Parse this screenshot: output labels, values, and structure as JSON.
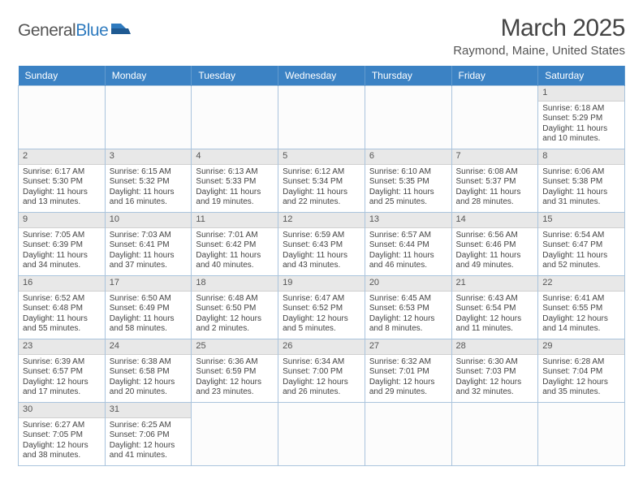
{
  "logo": {
    "text1": "General",
    "text2": "Blue"
  },
  "title": "March 2025",
  "location": "Raymond, Maine, United States",
  "colors": {
    "header_bg": "#3b82c4",
    "header_text": "#ffffff",
    "border": "#aac4dd",
    "daynum_bg": "#e8e8e8",
    "text": "#444444",
    "logo_gray": "#555555",
    "logo_blue": "#2f7bbf"
  },
  "day_headers": [
    "Sunday",
    "Monday",
    "Tuesday",
    "Wednesday",
    "Thursday",
    "Friday",
    "Saturday"
  ],
  "weeks": [
    [
      null,
      null,
      null,
      null,
      null,
      null,
      {
        "n": "1",
        "sr": "Sunrise: 6:18 AM",
        "ss": "Sunset: 5:29 PM",
        "d1": "Daylight: 11 hours",
        "d2": "and 10 minutes."
      }
    ],
    [
      {
        "n": "2",
        "sr": "Sunrise: 6:17 AM",
        "ss": "Sunset: 5:30 PM",
        "d1": "Daylight: 11 hours",
        "d2": "and 13 minutes."
      },
      {
        "n": "3",
        "sr": "Sunrise: 6:15 AM",
        "ss": "Sunset: 5:32 PM",
        "d1": "Daylight: 11 hours",
        "d2": "and 16 minutes."
      },
      {
        "n": "4",
        "sr": "Sunrise: 6:13 AM",
        "ss": "Sunset: 5:33 PM",
        "d1": "Daylight: 11 hours",
        "d2": "and 19 minutes."
      },
      {
        "n": "5",
        "sr": "Sunrise: 6:12 AM",
        "ss": "Sunset: 5:34 PM",
        "d1": "Daylight: 11 hours",
        "d2": "and 22 minutes."
      },
      {
        "n": "6",
        "sr": "Sunrise: 6:10 AM",
        "ss": "Sunset: 5:35 PM",
        "d1": "Daylight: 11 hours",
        "d2": "and 25 minutes."
      },
      {
        "n": "7",
        "sr": "Sunrise: 6:08 AM",
        "ss": "Sunset: 5:37 PM",
        "d1": "Daylight: 11 hours",
        "d2": "and 28 minutes."
      },
      {
        "n": "8",
        "sr": "Sunrise: 6:06 AM",
        "ss": "Sunset: 5:38 PM",
        "d1": "Daylight: 11 hours",
        "d2": "and 31 minutes."
      }
    ],
    [
      {
        "n": "9",
        "sr": "Sunrise: 7:05 AM",
        "ss": "Sunset: 6:39 PM",
        "d1": "Daylight: 11 hours",
        "d2": "and 34 minutes."
      },
      {
        "n": "10",
        "sr": "Sunrise: 7:03 AM",
        "ss": "Sunset: 6:41 PM",
        "d1": "Daylight: 11 hours",
        "d2": "and 37 minutes."
      },
      {
        "n": "11",
        "sr": "Sunrise: 7:01 AM",
        "ss": "Sunset: 6:42 PM",
        "d1": "Daylight: 11 hours",
        "d2": "and 40 minutes."
      },
      {
        "n": "12",
        "sr": "Sunrise: 6:59 AM",
        "ss": "Sunset: 6:43 PM",
        "d1": "Daylight: 11 hours",
        "d2": "and 43 minutes."
      },
      {
        "n": "13",
        "sr": "Sunrise: 6:57 AM",
        "ss": "Sunset: 6:44 PM",
        "d1": "Daylight: 11 hours",
        "d2": "and 46 minutes."
      },
      {
        "n": "14",
        "sr": "Sunrise: 6:56 AM",
        "ss": "Sunset: 6:46 PM",
        "d1": "Daylight: 11 hours",
        "d2": "and 49 minutes."
      },
      {
        "n": "15",
        "sr": "Sunrise: 6:54 AM",
        "ss": "Sunset: 6:47 PM",
        "d1": "Daylight: 11 hours",
        "d2": "and 52 minutes."
      }
    ],
    [
      {
        "n": "16",
        "sr": "Sunrise: 6:52 AM",
        "ss": "Sunset: 6:48 PM",
        "d1": "Daylight: 11 hours",
        "d2": "and 55 minutes."
      },
      {
        "n": "17",
        "sr": "Sunrise: 6:50 AM",
        "ss": "Sunset: 6:49 PM",
        "d1": "Daylight: 11 hours",
        "d2": "and 58 minutes."
      },
      {
        "n": "18",
        "sr": "Sunrise: 6:48 AM",
        "ss": "Sunset: 6:50 PM",
        "d1": "Daylight: 12 hours",
        "d2": "and 2 minutes."
      },
      {
        "n": "19",
        "sr": "Sunrise: 6:47 AM",
        "ss": "Sunset: 6:52 PM",
        "d1": "Daylight: 12 hours",
        "d2": "and 5 minutes."
      },
      {
        "n": "20",
        "sr": "Sunrise: 6:45 AM",
        "ss": "Sunset: 6:53 PM",
        "d1": "Daylight: 12 hours",
        "d2": "and 8 minutes."
      },
      {
        "n": "21",
        "sr": "Sunrise: 6:43 AM",
        "ss": "Sunset: 6:54 PM",
        "d1": "Daylight: 12 hours",
        "d2": "and 11 minutes."
      },
      {
        "n": "22",
        "sr": "Sunrise: 6:41 AM",
        "ss": "Sunset: 6:55 PM",
        "d1": "Daylight: 12 hours",
        "d2": "and 14 minutes."
      }
    ],
    [
      {
        "n": "23",
        "sr": "Sunrise: 6:39 AM",
        "ss": "Sunset: 6:57 PM",
        "d1": "Daylight: 12 hours",
        "d2": "and 17 minutes."
      },
      {
        "n": "24",
        "sr": "Sunrise: 6:38 AM",
        "ss": "Sunset: 6:58 PM",
        "d1": "Daylight: 12 hours",
        "d2": "and 20 minutes."
      },
      {
        "n": "25",
        "sr": "Sunrise: 6:36 AM",
        "ss": "Sunset: 6:59 PM",
        "d1": "Daylight: 12 hours",
        "d2": "and 23 minutes."
      },
      {
        "n": "26",
        "sr": "Sunrise: 6:34 AM",
        "ss": "Sunset: 7:00 PM",
        "d1": "Daylight: 12 hours",
        "d2": "and 26 minutes."
      },
      {
        "n": "27",
        "sr": "Sunrise: 6:32 AM",
        "ss": "Sunset: 7:01 PM",
        "d1": "Daylight: 12 hours",
        "d2": "and 29 minutes."
      },
      {
        "n": "28",
        "sr": "Sunrise: 6:30 AM",
        "ss": "Sunset: 7:03 PM",
        "d1": "Daylight: 12 hours",
        "d2": "and 32 minutes."
      },
      {
        "n": "29",
        "sr": "Sunrise: 6:28 AM",
        "ss": "Sunset: 7:04 PM",
        "d1": "Daylight: 12 hours",
        "d2": "and 35 minutes."
      }
    ],
    [
      {
        "n": "30",
        "sr": "Sunrise: 6:27 AM",
        "ss": "Sunset: 7:05 PM",
        "d1": "Daylight: 12 hours",
        "d2": "and 38 minutes."
      },
      {
        "n": "31",
        "sr": "Sunrise: 6:25 AM",
        "ss": "Sunset: 7:06 PM",
        "d1": "Daylight: 12 hours",
        "d2": "and 41 minutes."
      },
      null,
      null,
      null,
      null,
      null
    ]
  ]
}
